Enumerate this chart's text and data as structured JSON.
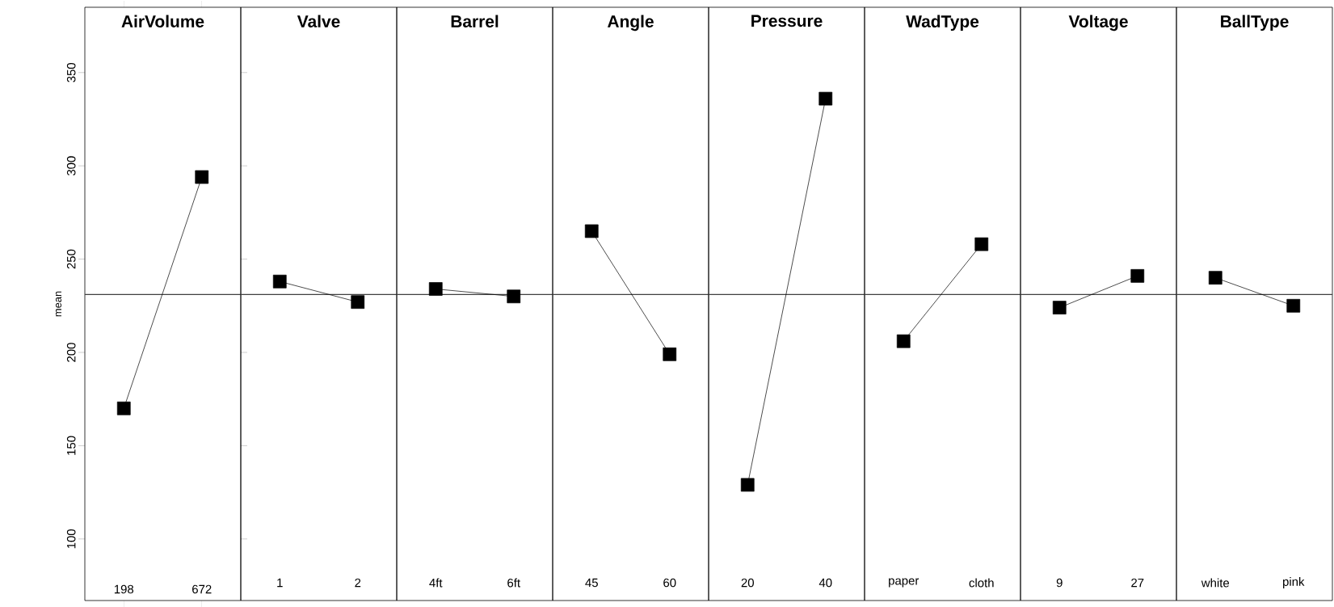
{
  "chart_data": [
    {
      "type": "line",
      "title": "AirVolume",
      "ylabel": "mean",
      "categories": [
        "198",
        "672"
      ],
      "values": [
        170,
        294
      ],
      "color": "#000000",
      "marker": "square",
      "ylim": [
        67,
        385
      ],
      "yticks": [
        100,
        150,
        200,
        250,
        300,
        350
      ],
      "ref_lines": [
        {
          "axis": "y",
          "value": 231
        }
      ]
    },
    {
      "type": "line",
      "title": "Valve",
      "categories": [
        "1",
        "2"
      ],
      "values": [
        238,
        227
      ],
      "color": "#000000",
      "marker": "square",
      "ylim": [
        67,
        385
      ],
      "yticks": [
        100,
        150,
        200,
        250,
        300,
        350
      ],
      "ref_lines": [
        {
          "axis": "y",
          "value": 231
        }
      ],
      "tick_labels": "x"
    },
    {
      "type": "line",
      "title": "Barrel",
      "categories": [
        "4ft",
        "6ft"
      ],
      "values": [
        234,
        230
      ],
      "color": "#000000",
      "marker": "square",
      "ylim": [
        67,
        385
      ],
      "yticks": [
        100,
        150,
        200,
        250,
        300,
        350
      ],
      "ref_lines": [
        {
          "axis": "y",
          "value": 231
        }
      ],
      "tick_labels": "x"
    },
    {
      "type": "line",
      "title": "Angle",
      "categories": [
        "45",
        "60"
      ],
      "values": [
        265,
        199
      ],
      "color": "#000000",
      "marker": "square",
      "ylim": [
        67,
        385
      ],
      "yticks": [
        100,
        150,
        200,
        250,
        300,
        350
      ],
      "ref_lines": [
        {
          "axis": "y",
          "value": 231
        }
      ],
      "tick_labels": "x"
    },
    {
      "type": "line",
      "title": "Pressure",
      "categories": [
        "20",
        "40"
      ],
      "values": [
        129,
        336
      ],
      "color": "#000000",
      "marker": "square",
      "ylim": [
        67,
        385
      ],
      "yticks": [
        100,
        150,
        200,
        250,
        300,
        350
      ],
      "ref_lines": [
        {
          "axis": "y",
          "value": 231
        }
      ],
      "tick_labels": "x"
    },
    {
      "type": "line",
      "title": "WadType",
      "categories": [
        "paper",
        "cloth"
      ],
      "values": [
        206,
        258
      ],
      "color": "#000000",
      "marker": "square",
      "ylim": [
        67,
        385
      ],
      "yticks": [
        100,
        150,
        200,
        250,
        300,
        350
      ],
      "ref_lines": [
        {
          "axis": "y",
          "value": 231
        }
      ],
      "tick_labels": "x"
    },
    {
      "type": "line",
      "title": "Voltage",
      "categories": [
        "9",
        "27"
      ],
      "values": [
        224,
        241
      ],
      "color": "#000000",
      "marker": "square",
      "ylim": [
        67,
        385
      ],
      "yticks": [
        100,
        150,
        200,
        250,
        300,
        350
      ],
      "ref_lines": [
        {
          "axis": "y",
          "value": 231
        }
      ],
      "tick_labels": "x"
    },
    {
      "type": "line",
      "title": "BallType",
      "categories": [
        "white",
        "pink"
      ],
      "values": [
        240,
        225
      ],
      "color": "#000000",
      "marker": "square",
      "ylim": [
        67,
        385
      ],
      "yticks": [
        100,
        150,
        200,
        250,
        300,
        350
      ],
      "ref_lines": [
        {
          "axis": "y",
          "value": 231
        }
      ],
      "tick_labels": "x"
    }
  ]
}
